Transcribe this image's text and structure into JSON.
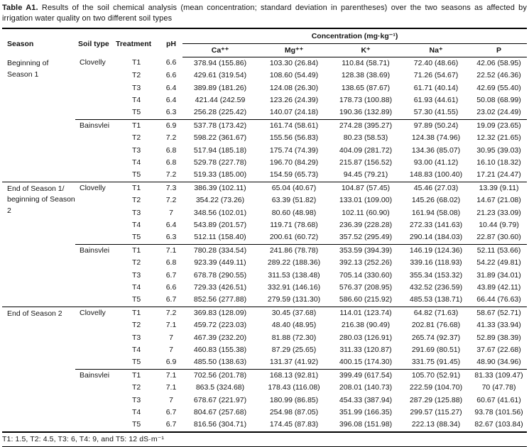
{
  "title": {
    "label": "Table A1.",
    "text": " Results of the soil chemical analysis (mean concentration; standard deviation in parentheses) over the two seasons as affected by irrigation water quality on two different soil types"
  },
  "table": {
    "columns": {
      "season": "Season",
      "soil": "Soil type",
      "treatment": "Treatment",
      "ph": "pH"
    },
    "concentration_header": "Concentration (mg·kg⁻¹)",
    "ion_columns": [
      "Ca⁺⁺",
      "Mg⁺⁺",
      "K⁺",
      "Na⁺",
      "P"
    ],
    "groups": [
      {
        "season": "Beginning of Season 1",
        "soils": [
          {
            "soil": "Clovelly",
            "rows": [
              {
                "treatment": "T1",
                "ph": "6.6",
                "ca": "378.94 (155.86)",
                "mg": "103.30 (26.84)",
                "k": "110.84 (58.71)",
                "na": "72.40 (48.66)",
                "p": "42.06 (58.95)"
              },
              {
                "treatment": "T2",
                "ph": "6.6",
                "ca": "429.61 (319.54)",
                "mg": "108.60 (54.49)",
                "k": "128.38 (38.69)",
                "na": "71.26 (54.67)",
                "p": "22.52 (46.36)"
              },
              {
                "treatment": "T3",
                "ph": "6.4",
                "ca": "389.89 (181.26)",
                "mg": "124.08 (26.30)",
                "k": "138.65 (87.67)",
                "na": "61.71 (40.14)",
                "p": "42.69 (55.40)"
              },
              {
                "treatment": "T4",
                "ph": "6.4",
                "ca": "421.44 (242.59",
                "mg": "123.26 (24.39)",
                "k": "178.73 (100.88)",
                "na": "61.93 (44.61)",
                "p": "50.08 (68.99)"
              },
              {
                "treatment": "T5",
                "ph": "6.3",
                "ca": "256.28 (225.42)",
                "mg": "140.07 (24.18)",
                "k": "190.36 (132.89)",
                "na": "57.30 (41.55)",
                "p": "23.02 (24.49)"
              }
            ]
          },
          {
            "soil": "Bainsvlei",
            "rows": [
              {
                "treatment": "T1",
                "ph": "6.9",
                "ca": "537.78 (173.42)",
                "mg": "161.74 (58.61)",
                "k": "274.28 (395.27)",
                "na": "97.89 (50.24)",
                "p": "19.09 (23.65)"
              },
              {
                "treatment": "T2",
                "ph": "7.2",
                "ca": "598.22 (361.67)",
                "mg": "155.56 (56.83)",
                "k": "80.23 (58.53)",
                "na": "124.38 (74.96)",
                "p": "12.32 (21.65)"
              },
              {
                "treatment": "T3",
                "ph": "6.8",
                "ca": "517.94 (185.18)",
                "mg": "175.74 (74.39)",
                "k": "404.09 (281.72)",
                "na": "134.36 (85.07)",
                "p": "30.95 (39.03)"
              },
              {
                "treatment": "T4",
                "ph": "6.8",
                "ca": "529.78 (227.78)",
                "mg": "196.70 (84.29)",
                "k": "215.87 (156.52)",
                "na": "93.00 (41.12)",
                "p": "16.10 (18.32)"
              },
              {
                "treatment": "T5",
                "ph": "7.2",
                "ca": "519.33 (185.00)",
                "mg": "154.59 (65.73)",
                "k": "94.45 (79.21)",
                "na": "148.83 (100.40)",
                "p": "17.21 (24.47)"
              }
            ]
          }
        ]
      },
      {
        "season": "End of Season 1/ beginning of Season 2",
        "soils": [
          {
            "soil": "Clovelly",
            "rows": [
              {
                "treatment": "T1",
                "ph": "7.3",
                "ca": "386.39 (102.11)",
                "mg": "65.04 (40.67)",
                "k": "104.87 (57.45)",
                "na": "45.46 (27.03)",
                "p": "13.39 (9.11)"
              },
              {
                "treatment": "T2",
                "ph": "7.2",
                "ca": "354.22 (73.26)",
                "mg": "63.39 (51.82)",
                "k": "133.01 (109.00)",
                "na": "145.26 (68.02)",
                "p": "14.67 (21.08)"
              },
              {
                "treatment": "T3",
                "ph": "7",
                "ca": "348.56 (102.01)",
                "mg": "80.60 (48.98)",
                "k": "102.11 (60.90)",
                "na": "161.94 (58.08)",
                "p": "21.23 (33.09)"
              },
              {
                "treatment": "T4",
                "ph": "6.4",
                "ca": "543.89 (201.57)",
                "mg": "119.71 (78.68)",
                "k": "236.39 (228.28)",
                "na": "272.33 (141.63)",
                "p": "10.44 (9.79)"
              },
              {
                "treatment": "T5",
                "ph": "6.3",
                "ca": "512.11 (158.40)",
                "mg": "200.61 (60.72)",
                "k": "357.52 (295.49)",
                "na": "290.14 (184.03)",
                "p": "22.87 (30.60)"
              }
            ]
          },
          {
            "soil": "Bainsvlei",
            "rows": [
              {
                "treatment": "T1",
                "ph": "7.1",
                "ca": "780.28 (334.54)",
                "mg": "241.86 (78.78)",
                "k": "353.59 (394.39)",
                "na": "146.19 (124.36)",
                "p": "52.11 (53.66)"
              },
              {
                "treatment": "T2",
                "ph": "6.8",
                "ca": "923.39 (449.11)",
                "mg": "289.22 (188.36)",
                "k": "392.13 (252.26)",
                "na": "339.16 (118.93)",
                "p": "54.22 (49.81)"
              },
              {
                "treatment": "T3",
                "ph": "6.7",
                "ca": "678.78 (290.55)",
                "mg": "311.53 (138.48)",
                "k": "705.14 (330.60)",
                "na": "355.34 (153.32)",
                "p": "31.89 (34.01)"
              },
              {
                "treatment": "T4",
                "ph": "6.6",
                "ca": "729.33 (426.51)",
                "mg": "332.91 (146.16)",
                "k": "576.37 (208.95)",
                "na": "432.52 (236.59)",
                "p": "43.89 (42.11)"
              },
              {
                "treatment": "T5",
                "ph": "6.7",
                "ca": "852.56 (277.88)",
                "mg": "279.59 (131.30)",
                "k": "586.60 (215.92)",
                "na": "485.53 (138.71)",
                "p": "66.44 (76.63)"
              }
            ]
          }
        ]
      },
      {
        "season": "End of Season 2",
        "soils": [
          {
            "soil": "Clovelly",
            "rows": [
              {
                "treatment": "T1",
                "ph": "7.2",
                "ca": "369.83 (128.09)",
                "mg": "30.45 (37.68)",
                "k": "114.01 (123.74)",
                "na": "64.82 (71.63)",
                "p": "58.67 (52.71)"
              },
              {
                "treatment": "T2",
                "ph": "7.1",
                "ca": "459.72 (223.03)",
                "mg": "48.40 (48.95)",
                "k": "216.38 (90.49)",
                "na": "202.81 (76.68)",
                "p": "41.33 (33.94)"
              },
              {
                "treatment": "T3",
                "ph": "7",
                "ca": "467.39 (232.20)",
                "mg": "81.88 (72.30)",
                "k": "280.03 (126.91)",
                "na": "265.74 (92.37)",
                "p": "52.89 (38.39)"
              },
              {
                "treatment": "T4",
                "ph": "7",
                "ca": "460.83 (155.38)",
                "mg": "87.29 (25.65)",
                "k": "311.33 (120.87)",
                "na": "291.69 (80.51)",
                "p": "37.67 (22.68)"
              },
              {
                "treatment": "T5",
                "ph": "6.9",
                "ca": "485.50 (138.63)",
                "mg": "131.37 (41.92)",
                "k": "400.15 (174.30)",
                "na": "331.75 (91.45)",
                "p": "48.90 (34.96)"
              }
            ]
          },
          {
            "soil": "Bainsvlei",
            "rows": [
              {
                "treatment": "T1",
                "ph": "7.1",
                "ca": "702.56 (201.78)",
                "mg": "168.13 (92.81)",
                "k": "399.49 (617.54)",
                "na": "105.70 (52.91)",
                "p": "81.33 (109.47)"
              },
              {
                "treatment": "T2",
                "ph": "7.1",
                "ca": "863.5 (324.68)",
                "mg": "178.43 (116.08)",
                "k": "208.01 (140.73)",
                "na": "222.59 (104.70)",
                "p": "70 (47.78)"
              },
              {
                "treatment": "T3",
                "ph": "7",
                "ca": "678.67 (221.97)",
                "mg": "180.99 (86.85)",
                "k": "454.33 (387.94)",
                "na": "287.29 (125.88)",
                "p": "60.67 (41.61)"
              },
              {
                "treatment": "T4",
                "ph": "6.7",
                "ca": "804.67 (257.68)",
                "mg": "254.98 (87.05)",
                "k": "351.99 (166.35)",
                "na": "299.57 (115.27)",
                "p": "93.78 (101.56)"
              },
              {
                "treatment": "T5",
                "ph": "6.7",
                "ca": "816.56 (304.71)",
                "mg": "174.45 (87.83)",
                "k": "396.08 (151.98)",
                "na": "222.13 (88.34)",
                "p": "82.67 (103.84)"
              }
            ]
          }
        ]
      }
    ]
  },
  "footnote": "T1: 1.5, T2: 4.5, T3: 6, T4: 9, and T5: 12 dS·m⁻¹"
}
